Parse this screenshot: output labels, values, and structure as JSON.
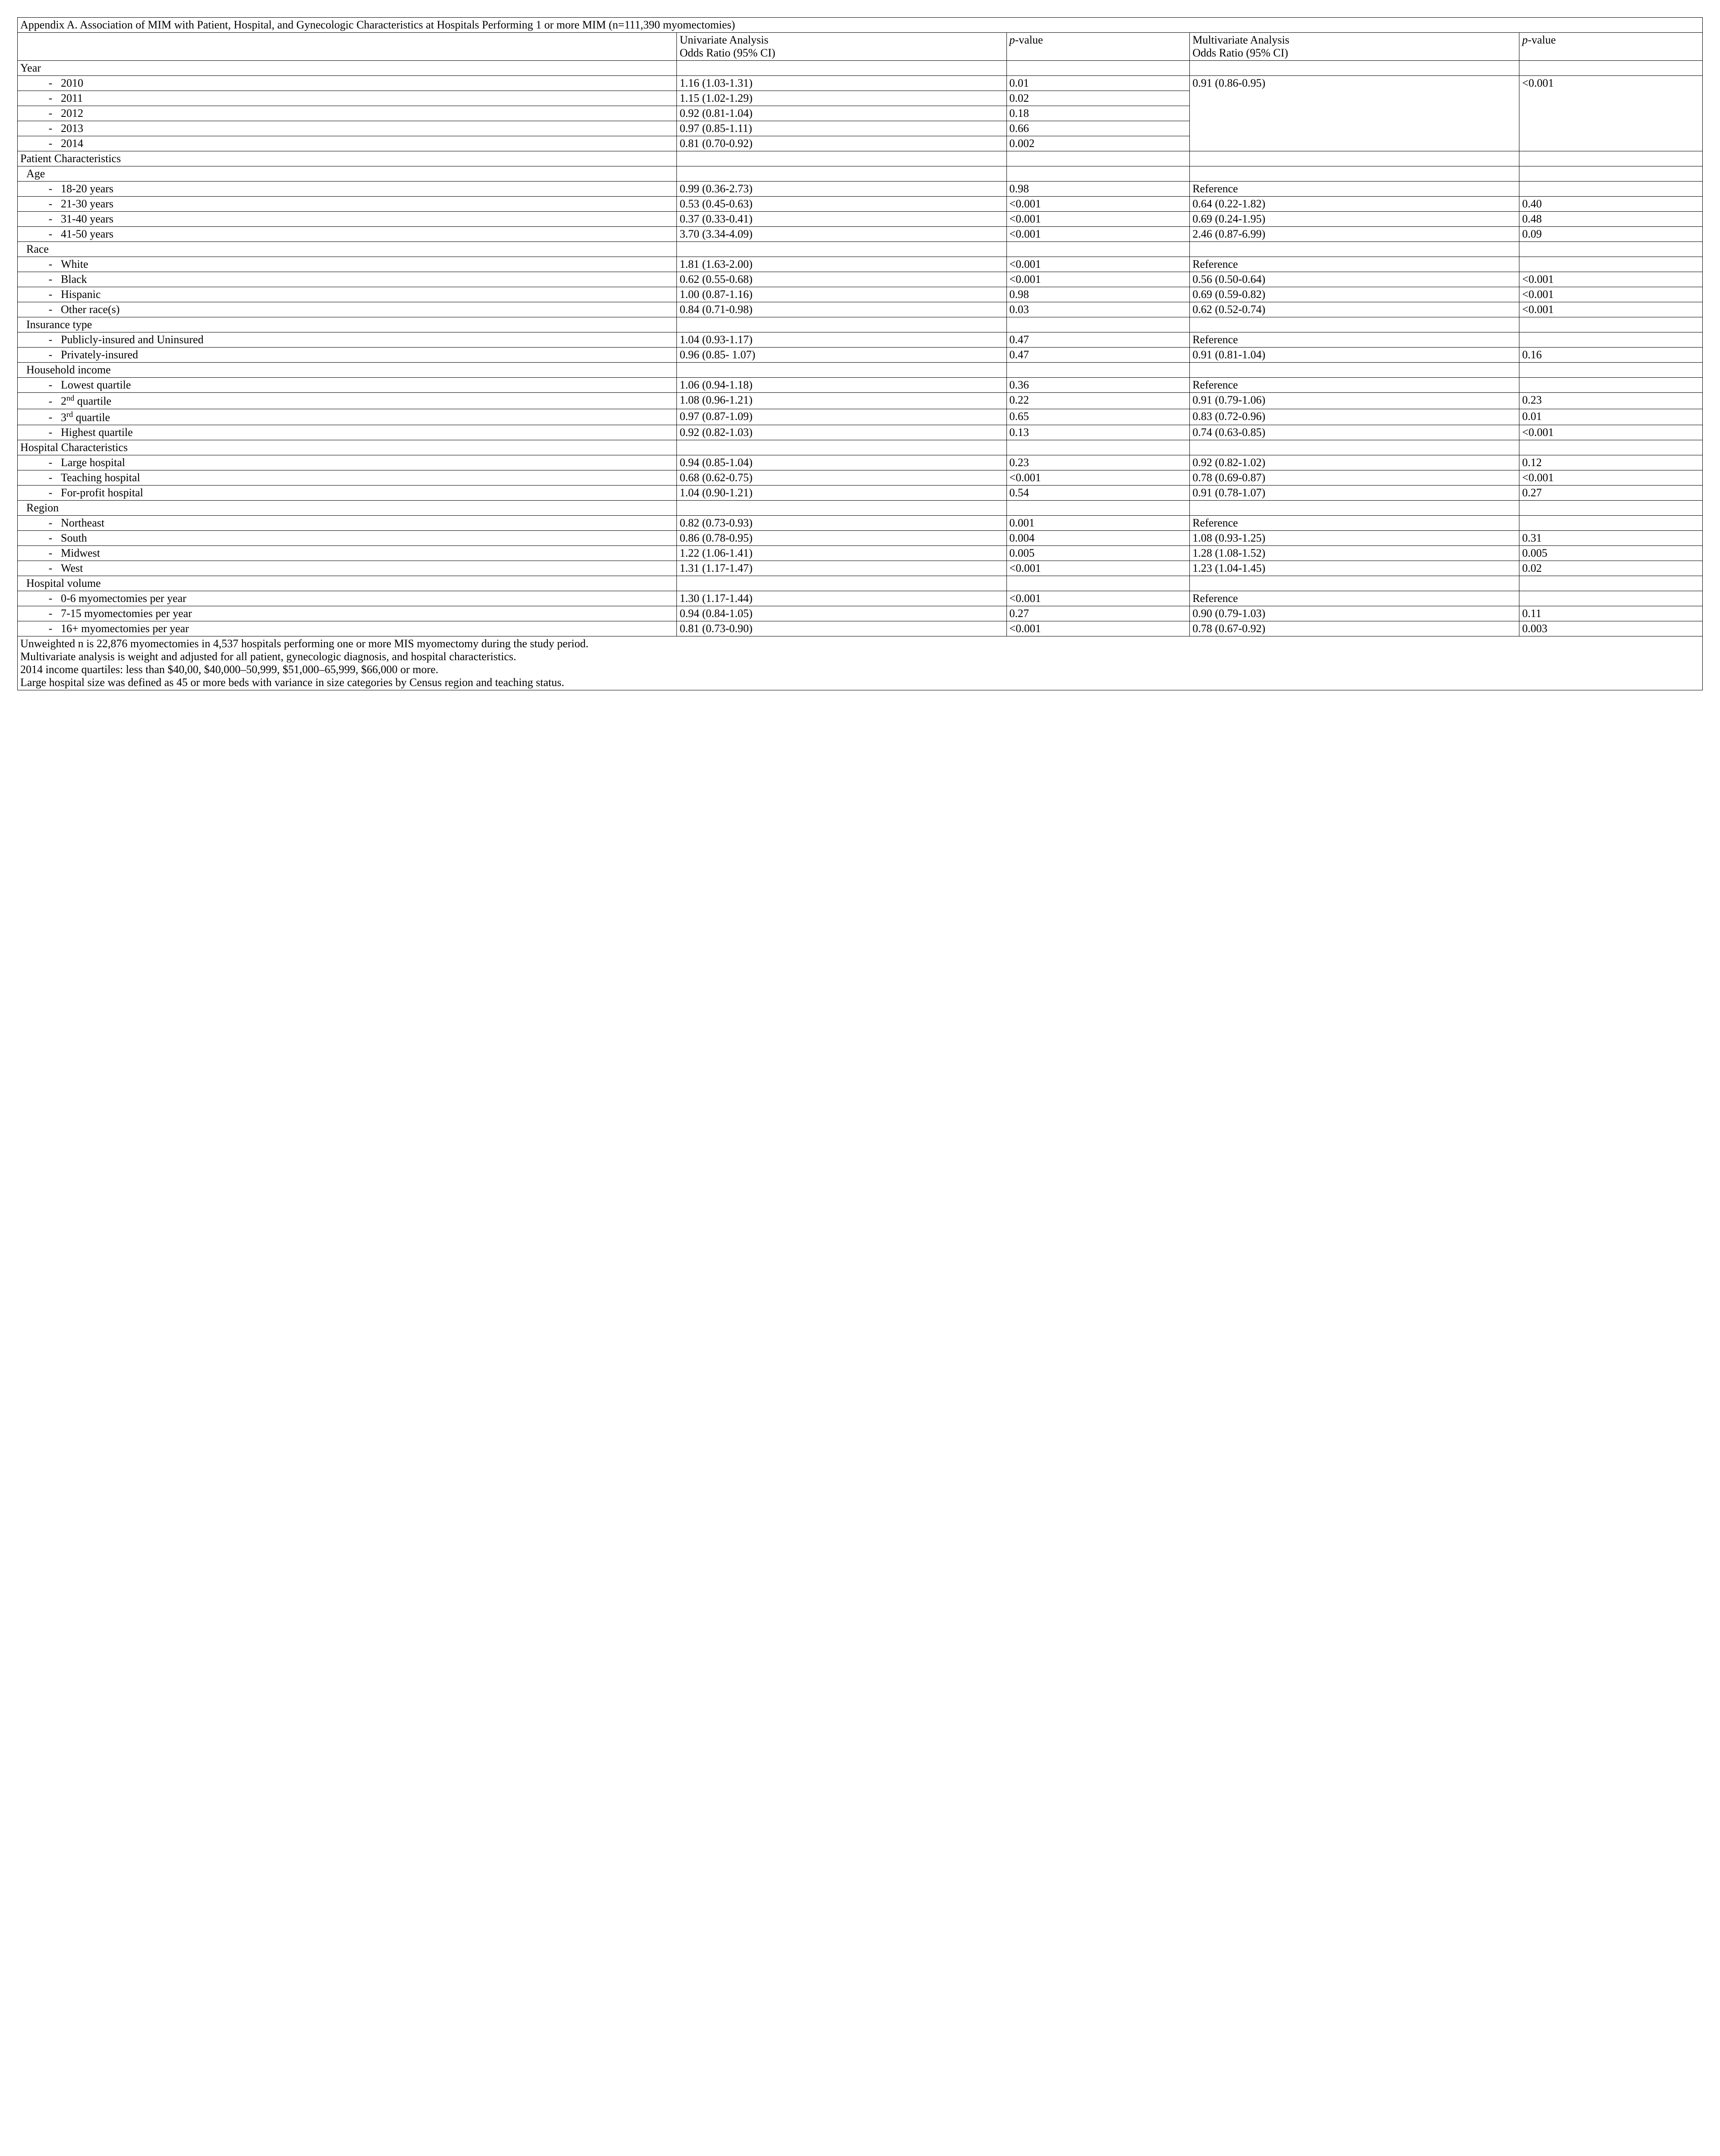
{
  "title": "Appendix A. Association of MIM with Patient, Hospital, and Gynecologic Characteristics at Hospitals Performing 1 or more MIM (n=111,390 myomectomies)",
  "headers": {
    "uni": "Univariate Analysis\nOdds Ratio (95% CI)",
    "p1": "p-value",
    "multi": "Multivariate Analysis\nOdds Ratio (95% CI)",
    "p2": "p-value"
  },
  "sections": {
    "year": "Year",
    "year_rows": [
      {
        "label": "2010",
        "uni": "1.16 (1.03-1.31)",
        "p1": "0.01"
      },
      {
        "label": "2011",
        "uni": "1.15 (1.02-1.29)",
        "p1": "0.02"
      },
      {
        "label": "2012",
        "uni": "0.92 (0.81-1.04)",
        "p1": "0.18"
      },
      {
        "label": "2013",
        "uni": "0.97 (0.85-1.11)",
        "p1": "0.66"
      },
      {
        "label": "2014",
        "uni": "0.81 (0.70-0.92)",
        "p1": "0.002"
      }
    ],
    "year_multi": "0.91 (0.86-0.95)",
    "year_p2": "<0.001",
    "patient_chars": "Patient Characteristics",
    "age": "Age",
    "age_rows": [
      {
        "label": "18-20 years",
        "uni": "0.99 (0.36-2.73)",
        "p1": "0.98",
        "multi": "Reference",
        "p2": ""
      },
      {
        "label": "21-30 years",
        "uni": "0.53 (0.45-0.63)",
        "p1": "<0.001",
        "multi": "0.64 (0.22-1.82)",
        "p2": "0.40"
      },
      {
        "label": "31-40 years",
        "uni": "0.37 (0.33-0.41)",
        "p1": "<0.001",
        "multi": "0.69 (0.24-1.95)",
        "p2": "0.48"
      },
      {
        "label": "41-50 years",
        "uni": "3.70 (3.34-4.09)",
        "p1": "<0.001",
        "multi": "2.46 (0.87-6.99)",
        "p2": "0.09"
      }
    ],
    "race": "Race",
    "race_rows": [
      {
        "label": "White",
        "uni": "1.81 (1.63-2.00)",
        "p1": "<0.001",
        "multi": "Reference",
        "p2": ""
      },
      {
        "label": "Black",
        "uni": "0.62 (0.55-0.68)",
        "p1": "<0.001",
        "multi": "0.56 (0.50-0.64)",
        "p2": "<0.001"
      },
      {
        "label": "Hispanic",
        "uni": "1.00 (0.87-1.16)",
        "p1": "0.98",
        "multi": "0.69 (0.59-0.82)",
        "p2": "<0.001"
      },
      {
        "label": "Other race(s)",
        "uni": "0.84 (0.71-0.98)",
        "p1": "0.03",
        "multi": "0.62 (0.52-0.74)",
        "p2": "<0.001"
      }
    ],
    "insurance": "Insurance type",
    "insurance_rows": [
      {
        "label": "Publicly-insured and Uninsured",
        "uni": "1.04 (0.93-1.17)",
        "p1": "0.47",
        "multi": "Reference",
        "p2": ""
      },
      {
        "label": "Privately-insured",
        "uni": "0.96 (0.85- 1.07)",
        "p1": "0.47",
        "multi": "0.91 (0.81-1.04)",
        "p2": "0.16"
      }
    ],
    "income": "Household income",
    "income_rows": [
      {
        "label": "Lowest quartile",
        "uni": "1.06 (0.94-1.18)",
        "p1": "0.36",
        "multi": "Reference",
        "p2": ""
      },
      {
        "label": "2nd quartile",
        "uni": "1.08 (0.96-1.21)",
        "p1": "0.22",
        "multi": "0.91 (0.79-1.06)",
        "p2": "0.23",
        "sup": "nd"
      },
      {
        "label": "3rd quartile",
        "uni": "0.97 (0.87-1.09)",
        "p1": "0.65",
        "multi": "0.83 (0.72-0.96)",
        "p2": "0.01",
        "sup": "rd"
      },
      {
        "label": "Highest quartile",
        "uni": "0.92 (0.82-1.03)",
        "p1": "0.13",
        "multi": "0.74 (0.63-0.85)",
        "p2": "<0.001"
      }
    ],
    "hospital_chars": "Hospital Characteristics",
    "hospital_rows": [
      {
        "label": "Large hospital",
        "uni": "0.94 (0.85-1.04)",
        "p1": "0.23",
        "multi": "0.92 (0.82-1.02)",
        "p2": "0.12"
      },
      {
        "label": "Teaching hospital",
        "uni": "0.68 (0.62-0.75)",
        "p1": "<0.001",
        "multi": "0.78 (0.69-0.87)",
        "p2": "<0.001"
      },
      {
        "label": "For-profit hospital",
        "uni": "1.04 (0.90-1.21)",
        "p1": "0.54",
        "multi": "0.91 (0.78-1.07)",
        "p2": "0.27"
      }
    ],
    "region": "Region",
    "region_rows": [
      {
        "label": "Northeast",
        "uni": "0.82 (0.73-0.93)",
        "p1": "0.001",
        "multi": "Reference",
        "p2": ""
      },
      {
        "label": "South",
        "uni": "0.86 (0.78-0.95)",
        "p1": "0.004",
        "multi": "1.08 (0.93-1.25)",
        "p2": "0.31"
      },
      {
        "label": "Midwest",
        "uni": "1.22 (1.06-1.41)",
        "p1": "0.005",
        "multi": "1.28 (1.08-1.52)",
        "p2": "0.005"
      },
      {
        "label": "West",
        "uni": "1.31 (1.17-1.47)",
        "p1": "<0.001",
        "multi": "1.23 (1.04-1.45)",
        "p2": "0.02"
      }
    ],
    "volume": "Hospital volume",
    "volume_rows": [
      {
        "label": "0-6 myomectomies per year",
        "uni": "1.30 (1.17-1.44)",
        "p1": "<0.001",
        "multi": "Reference",
        "p2": ""
      },
      {
        "label": "7-15 myomectomies per year",
        "uni": "0.94 (0.84-1.05)",
        "p1": "0.27",
        "multi": "0.90 (0.79-1.03)",
        "p2": "0.11"
      },
      {
        "label": "16+ myomectomies per year",
        "uni": "0.81 (0.73-0.90)",
        "p1": "<0.001",
        "multi": "0.78 (0.67-0.92)",
        "p2": "0.003"
      }
    ]
  },
  "footnote": "Unweighted n is 22,876 myomectomies in 4,537 hospitals performing one or more MIS myomectomy during the study period.\nMultivariate analysis is weight and adjusted for all patient, gynecologic diagnosis, and hospital characteristics.\n2014 income quartiles: less than $40,00, $40,000–50,999, $51,000–65,999, $66,000 or more.\nLarge hospital size was defined as 45 or more beds with variance in size categories by Census region and teaching status."
}
